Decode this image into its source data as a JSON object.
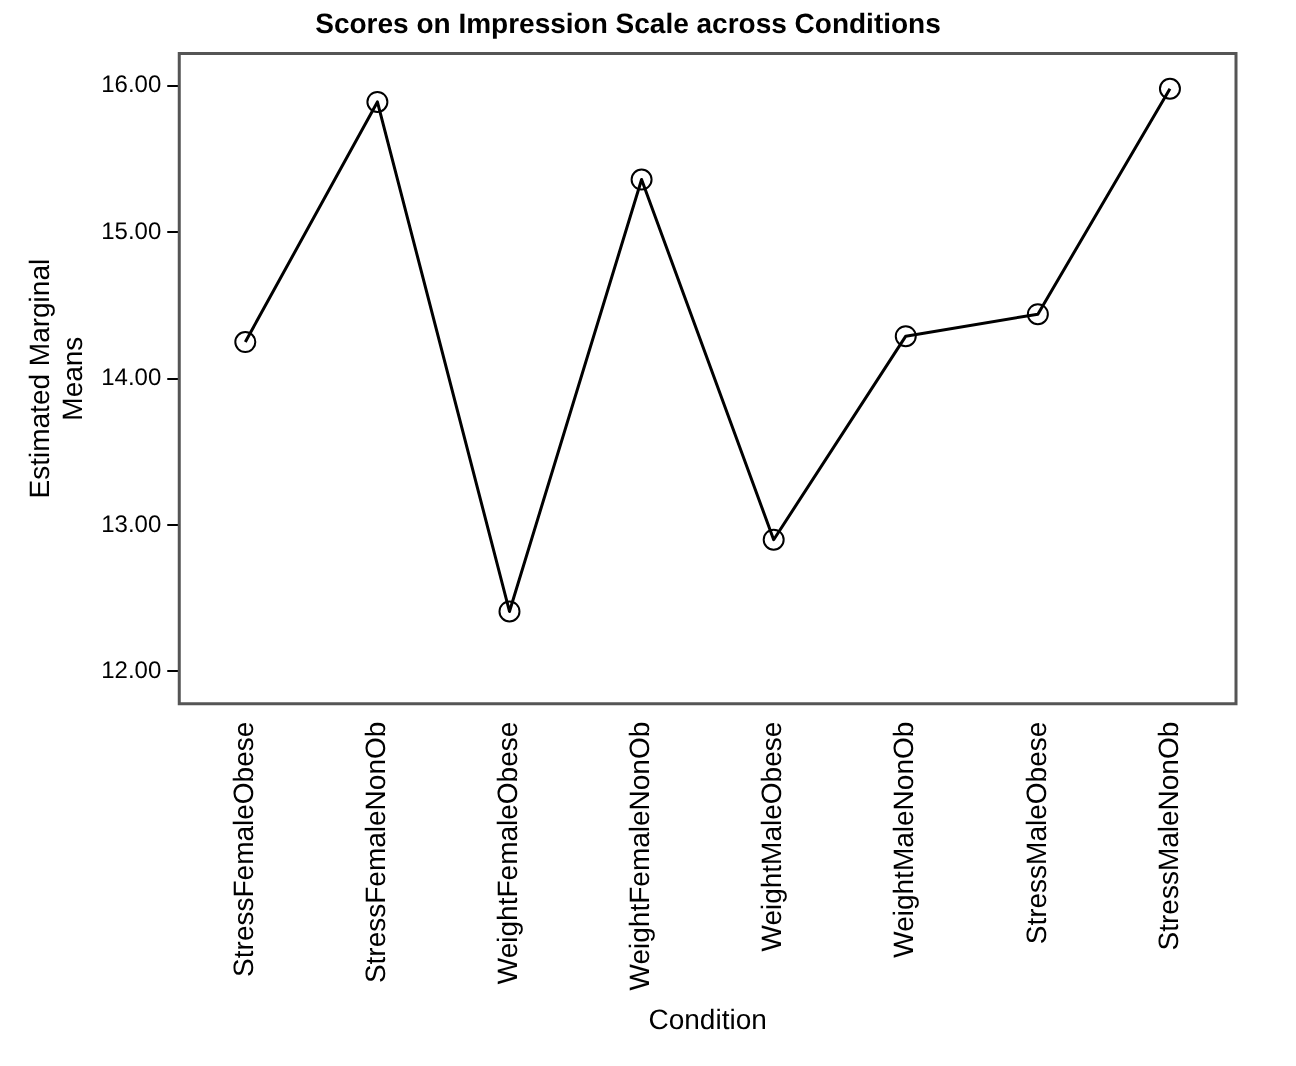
{
  "chart_data": {
    "type": "line",
    "title": "Scores on Impression Scale across Conditions",
    "xlabel": "Condition",
    "ylabel": "Estimated Marginal Means",
    "categories": [
      "StressFemaleObese",
      "StressFemaleNonOb",
      "WeightFemaleObese",
      "WeightFemaleNonOb",
      "WeightMaleObese",
      "WeightMaleNonOb",
      "StressMaleObese",
      "StressMaleNonOb"
    ],
    "series": [
      {
        "color": "#000000",
        "values": [
          14.25,
          15.89,
          12.41,
          15.36,
          12.9,
          14.29,
          14.44,
          15.98
        ]
      }
    ],
    "ylim": [
      11.78,
      16.22
    ],
    "yticks": [
      {
        "value": 12,
        "label": "12.00"
      },
      {
        "value": 13,
        "label": "13.00"
      },
      {
        "value": 14,
        "label": "14.00"
      },
      {
        "value": 15,
        "label": "15.00"
      },
      {
        "value": 16,
        "label": "16.00"
      }
    ],
    "grid": false,
    "legend": false,
    "marker": "circle",
    "line_style": "solid"
  }
}
